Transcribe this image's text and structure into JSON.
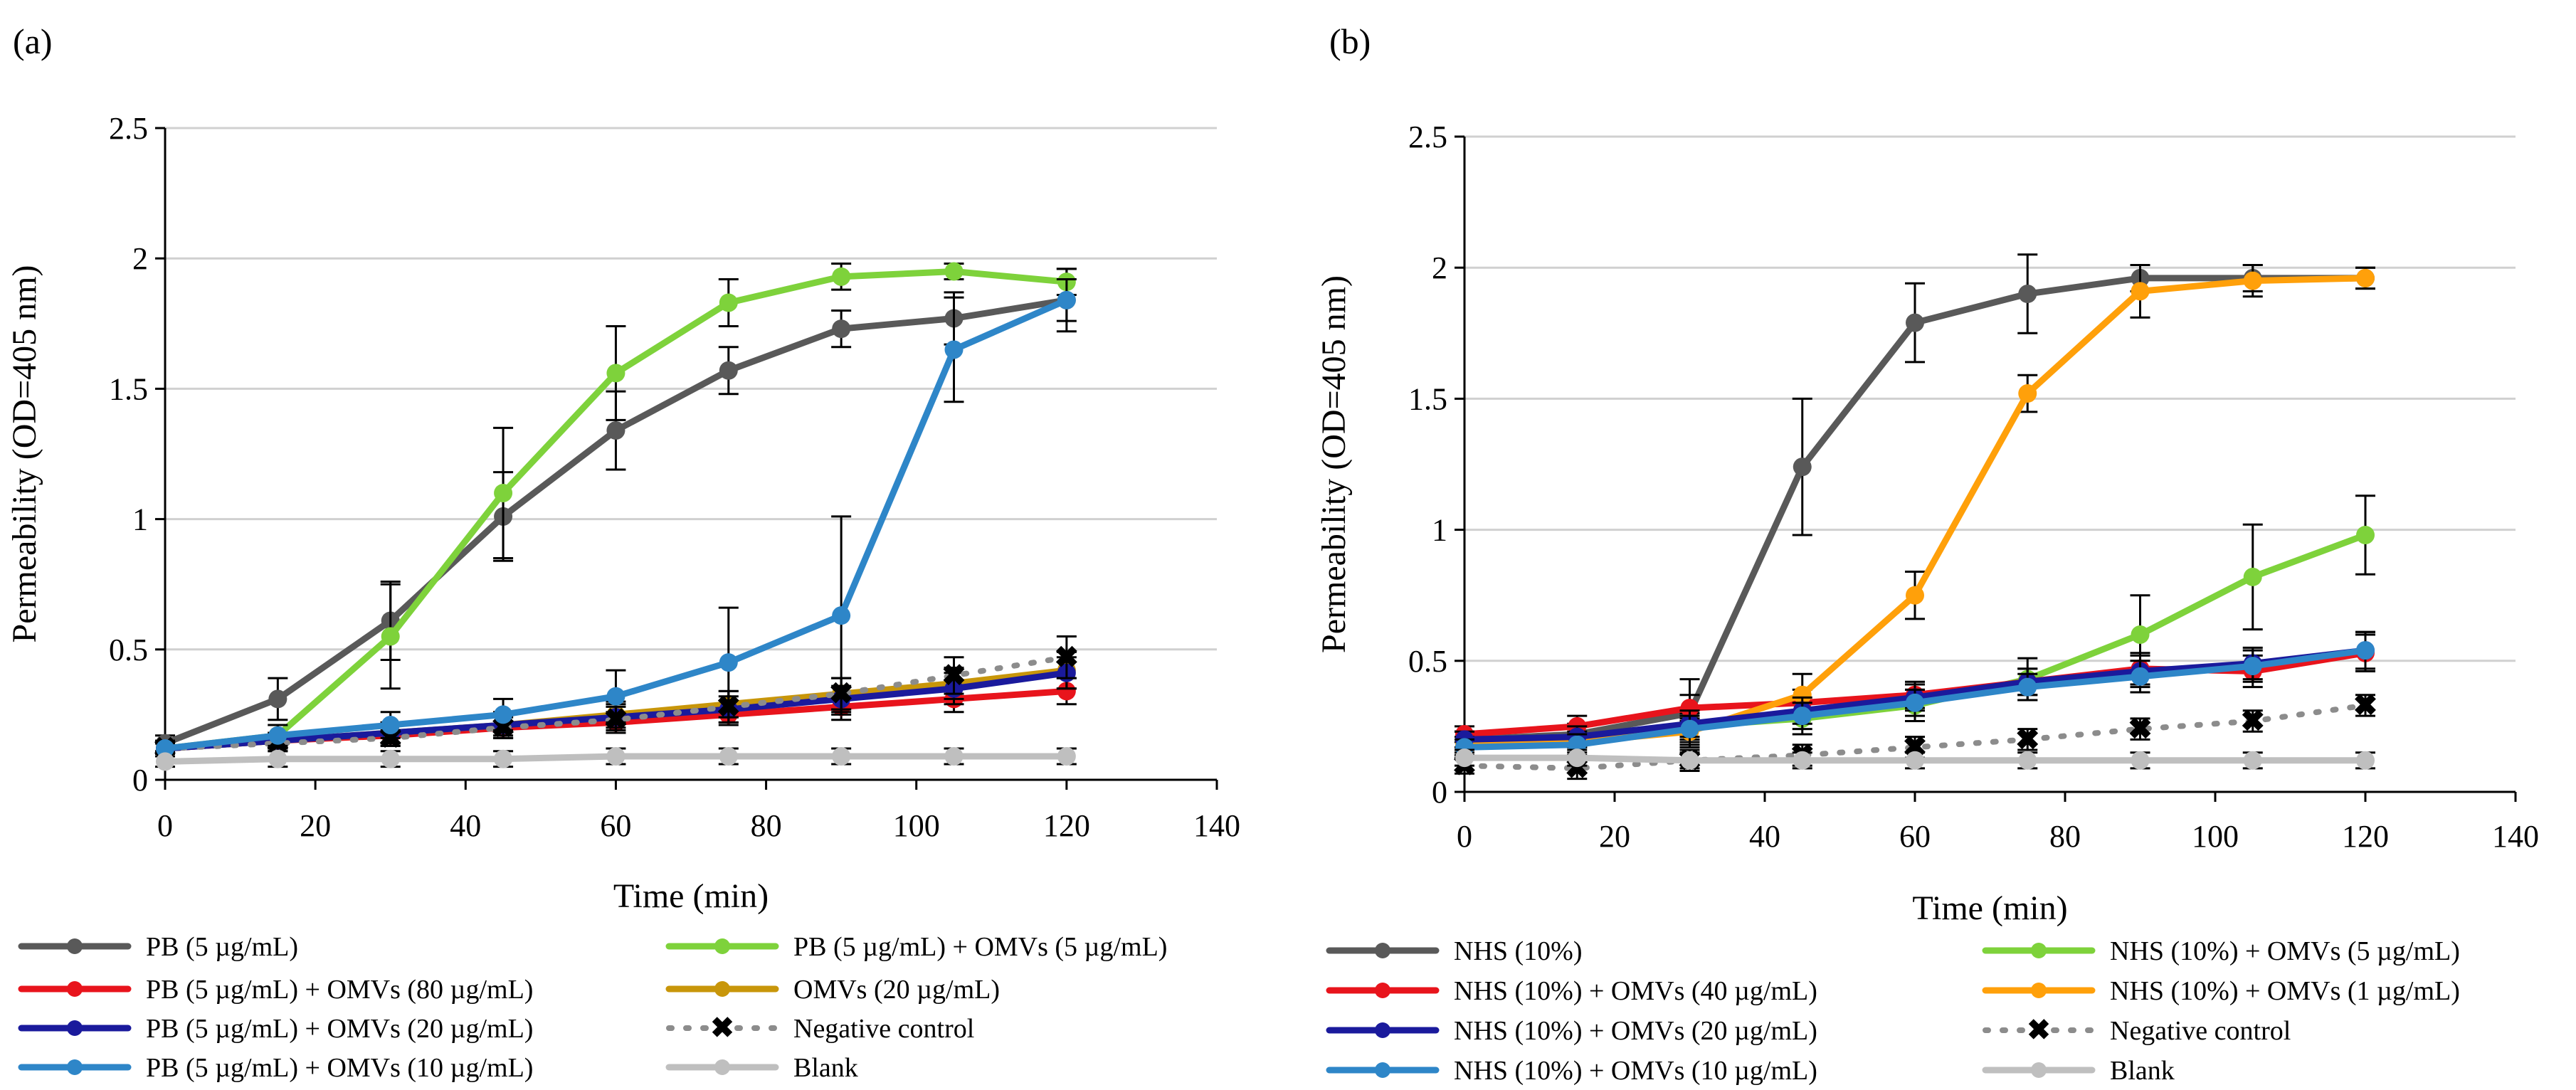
{
  "chart_data": [
    {
      "type": "line",
      "panel_label": "(a)",
      "xlabel": "Time (min)",
      "ylabel": "Permeability (OD=405 nm)",
      "xlim": [
        0,
        140
      ],
      "ylim": [
        0,
        2.5
      ],
      "xticks": [
        0,
        20,
        40,
        60,
        80,
        100,
        120,
        140
      ],
      "yticks": [
        0,
        0.5,
        1,
        1.5,
        2,
        2.5
      ],
      "ytick_labels": [
        "0",
        "0.5",
        "1",
        "1.5",
        "2",
        "2.5"
      ],
      "grid": true,
      "legend_position": "bottom",
      "x": [
        0,
        15,
        30,
        45,
        60,
        75,
        90,
        105,
        120
      ],
      "series": [
        {
          "name": "PB (5 µg/mL)",
          "color": "#595959",
          "dash": false,
          "values": [
            0.14,
            0.31,
            0.61,
            1.01,
            1.34,
            1.57,
            1.73,
            1.77,
            1.84
          ],
          "err": [
            0.03,
            0.08,
            0.15,
            0.17,
            0.15,
            0.09,
            0.07,
            0.1,
            0.12
          ]
        },
        {
          "name": "PB (5 µg/mL) + OMVs (5 µg/mL)",
          "color": "#7ed23b",
          "dash": false,
          "values": [
            0.12,
            0.17,
            0.55,
            1.1,
            1.56,
            1.83,
            1.93,
            1.95,
            1.91
          ],
          "err": [
            0.03,
            0.04,
            0.2,
            0.25,
            0.18,
            0.09,
            0.05,
            0.03,
            0.05
          ]
        },
        {
          "name": "PB (5 µg/mL) + OMVs (80 µg/mL)",
          "color": "#e8141c",
          "dash": false,
          "values": [
            0.12,
            0.15,
            0.17,
            0.2,
            0.22,
            0.25,
            0.28,
            0.31,
            0.34
          ],
          "err": [
            0.02,
            0.03,
            0.04,
            0.04,
            0.04,
            0.04,
            0.05,
            0.05,
            0.05
          ]
        },
        {
          "name": "OMVs (20 µg/mL)",
          "color": "#c8960a",
          "dash": false,
          "values": [
            0.12,
            0.15,
            0.18,
            0.21,
            0.25,
            0.29,
            0.33,
            0.37,
            0.42
          ],
          "err": [
            0.02,
            0.03,
            0.04,
            0.05,
            0.05,
            0.05,
            0.06,
            0.06,
            0.07
          ]
        },
        {
          "name": "PB (5 µg/mL) + OMVs (20 µg/mL)",
          "color": "#1a1a9c",
          "dash": false,
          "values": [
            0.12,
            0.15,
            0.18,
            0.21,
            0.24,
            0.27,
            0.31,
            0.35,
            0.41
          ],
          "err": [
            0.02,
            0.03,
            0.04,
            0.04,
            0.05,
            0.05,
            0.05,
            0.06,
            0.06
          ]
        },
        {
          "name": "Negative control",
          "color": "#8c8c8c",
          "dash": true,
          "values": [
            0.12,
            0.14,
            0.16,
            0.2,
            0.23,
            0.28,
            0.33,
            0.4,
            0.47
          ],
          "err": [
            0.02,
            0.03,
            0.03,
            0.04,
            0.05,
            0.06,
            0.06,
            0.07,
            0.08
          ]
        },
        {
          "name": "PB (5 µg/mL) + OMVs (10 µg/mL)",
          "color": "#2e86c8",
          "dash": false,
          "values": [
            0.12,
            0.17,
            0.21,
            0.25,
            0.32,
            0.45,
            0.63,
            1.65,
            1.84
          ],
          "err": [
            0.02,
            0.04,
            0.05,
            0.06,
            0.1,
            0.21,
            0.38,
            0.2,
            0.08
          ]
        },
        {
          "name": "Blank",
          "color": "#bfbfbf",
          "dash": false,
          "values": [
            0.07,
            0.08,
            0.08,
            0.08,
            0.09,
            0.09,
            0.09,
            0.09,
            0.09
          ],
          "err": [
            0.02,
            0.03,
            0.03,
            0.03,
            0.03,
            0.03,
            0.03,
            0.03,
            0.03
          ]
        }
      ]
    },
    {
      "type": "line",
      "panel_label": "(b)",
      "xlabel": "Time (min)",
      "ylabel": "Permeability (OD=405 nm)",
      "xlim": [
        0,
        140
      ],
      "ylim": [
        0,
        2.5
      ],
      "xticks": [
        0,
        20,
        40,
        60,
        80,
        100,
        120,
        140
      ],
      "yticks": [
        0,
        0.5,
        1,
        1.5,
        2,
        2.5
      ],
      "ytick_labels": [
        "0",
        "0.5",
        "1",
        "1.5",
        "2",
        "2.5"
      ],
      "grid": true,
      "legend_position": "bottom",
      "x": [
        0,
        15,
        30,
        45,
        60,
        75,
        90,
        105,
        120
      ],
      "series": [
        {
          "name": "NHS (10%)",
          "color": "#595959",
          "dash": false,
          "values": [
            0.2,
            0.22,
            0.3,
            1.24,
            1.79,
            1.9,
            1.96,
            1.96,
            1.96
          ],
          "err": [
            0.03,
            0.04,
            0.13,
            0.26,
            0.15,
            0.15,
            0.05,
            0.05,
            0.04
          ]
        },
        {
          "name": "NHS (10%) + OMVs (5 µg/mL)",
          "color": "#7ed23b",
          "dash": false,
          "values": [
            0.2,
            0.21,
            0.25,
            0.28,
            0.33,
            0.43,
            0.6,
            0.82,
            0.98
          ],
          "err": [
            0.03,
            0.04,
            0.05,
            0.06,
            0.06,
            0.08,
            0.15,
            0.2,
            0.15
          ]
        },
        {
          "name": "NHS (10%) + OMVs (40 µg/mL)",
          "color": "#e8141c",
          "dash": false,
          "values": [
            0.22,
            0.25,
            0.32,
            0.34,
            0.37,
            0.42,
            0.47,
            0.46,
            0.53
          ],
          "err": [
            0.03,
            0.04,
            0.05,
            0.05,
            0.05,
            0.05,
            0.06,
            0.06,
            0.07
          ]
        },
        {
          "name": "NHS (10%) + OMVs (1 µg/mL)",
          "color": "#ffa00a",
          "dash": false,
          "values": [
            0.18,
            0.19,
            0.23,
            0.37,
            0.75,
            1.52,
            1.91,
            1.95,
            1.96
          ],
          "err": [
            0.03,
            0.04,
            0.05,
            0.08,
            0.09,
            0.07,
            0.1,
            0.06,
            0.04
          ]
        },
        {
          "name": "NHS (10%) + OMVs (20 µg/mL)",
          "color": "#1a1a9c",
          "dash": false,
          "values": [
            0.2,
            0.21,
            0.26,
            0.31,
            0.36,
            0.42,
            0.46,
            0.49,
            0.54
          ],
          "err": [
            0.03,
            0.04,
            0.05,
            0.05,
            0.05,
            0.05,
            0.06,
            0.06,
            0.07
          ]
        },
        {
          "name": "Negative control",
          "color": "#8c8c8c",
          "dash": true,
          "values": [
            0.1,
            0.09,
            0.12,
            0.14,
            0.17,
            0.2,
            0.24,
            0.27,
            0.33
          ],
          "err": [
            0.03,
            0.04,
            0.04,
            0.04,
            0.04,
            0.04,
            0.04,
            0.04,
            0.04
          ]
        },
        {
          "name": "NHS (10%) + OMVs (10 µg/mL)",
          "color": "#2e86c8",
          "dash": false,
          "values": [
            0.17,
            0.18,
            0.24,
            0.29,
            0.34,
            0.4,
            0.44,
            0.48,
            0.54
          ],
          "err": [
            0.03,
            0.04,
            0.05,
            0.05,
            0.05,
            0.05,
            0.06,
            0.06,
            0.07
          ]
        },
        {
          "name": "Blank",
          "color": "#bfbfbf",
          "dash": false,
          "values": [
            0.13,
            0.13,
            0.12,
            0.12,
            0.12,
            0.12,
            0.12,
            0.12,
            0.12
          ],
          "err": [
            0.03,
            0.03,
            0.03,
            0.03,
            0.03,
            0.03,
            0.03,
            0.03,
            0.03
          ]
        }
      ]
    }
  ]
}
